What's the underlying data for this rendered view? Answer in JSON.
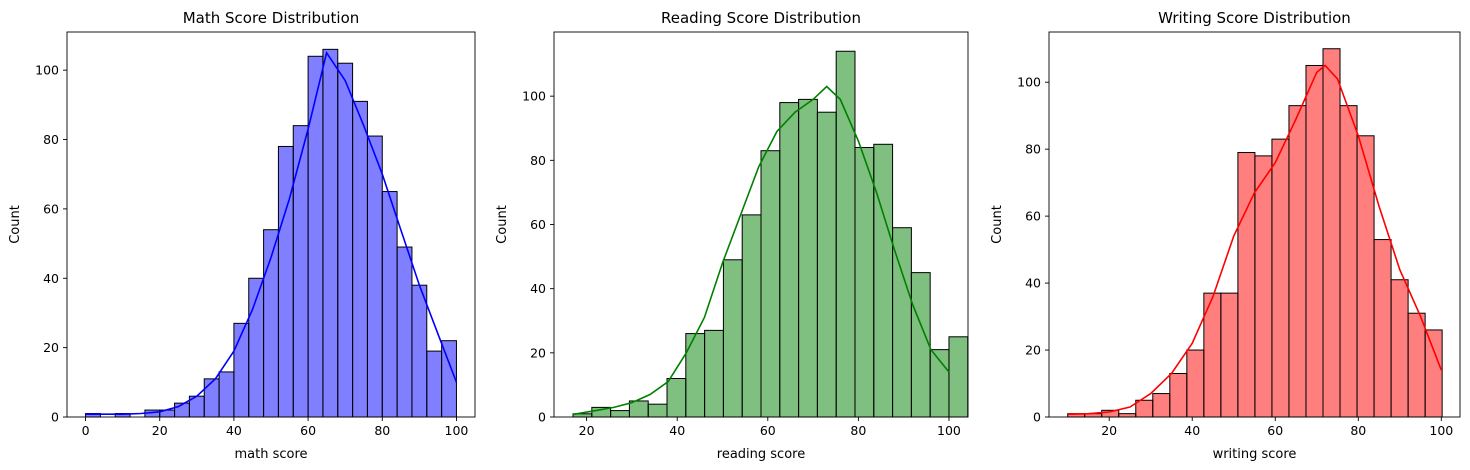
{
  "figure": {
    "background": "#ffffff"
  },
  "chart_data": [
    {
      "type": "bar",
      "title": "Math Score Distribution",
      "xlabel": "math score",
      "ylabel": "Count",
      "color": "#0000ff",
      "xlim": [
        -5,
        105
      ],
      "ylim": [
        0,
        111
      ],
      "xticks": [
        0,
        20,
        40,
        60,
        80,
        100
      ],
      "yticks": [
        0,
        20,
        40,
        60,
        80,
        100
      ],
      "bin_start": 0,
      "bin_width": 4,
      "values": [
        1,
        0,
        1,
        0,
        2,
        2,
        4,
        6,
        11,
        13,
        27,
        40,
        54,
        78,
        84,
        104,
        106,
        102,
        91,
        81,
        65,
        49,
        38,
        19,
        22
      ],
      "kde": [
        [
          0,
          0.8
        ],
        [
          5,
          0.8
        ],
        [
          10,
          0.8
        ],
        [
          15,
          1
        ],
        [
          20,
          1.5
        ],
        [
          25,
          3
        ],
        [
          30,
          6
        ],
        [
          35,
          11
        ],
        [
          40,
          19
        ],
        [
          45,
          31
        ],
        [
          50,
          46
        ],
        [
          55,
          63
        ],
        [
          60,
          83
        ],
        [
          65,
          105
        ],
        [
          70,
          97
        ],
        [
          75,
          84
        ],
        [
          80,
          70
        ],
        [
          85,
          54
        ],
        [
          90,
          38
        ],
        [
          95,
          24
        ],
        [
          100,
          10
        ]
      ]
    },
    {
      "type": "bar",
      "title": "Reading Score Distribution",
      "xlabel": "reading score",
      "ylabel": "Count",
      "color": "#008000",
      "xlim": [
        12.8,
        104.2
      ],
      "ylim": [
        0,
        120
      ],
      "xticks": [
        20,
        40,
        60,
        80,
        100
      ],
      "yticks": [
        0,
        20,
        40,
        60,
        80,
        100
      ],
      "bin_start": 17,
      "bin_width": 4.15,
      "values": [
        1,
        3,
        2,
        5,
        4,
        12,
        26,
        27,
        49,
        63,
        83,
        98,
        99,
        95,
        114,
        84,
        85,
        59,
        45,
        21,
        25
      ],
      "kde": [
        [
          17,
          0.8
        ],
        [
          22,
          2
        ],
        [
          26,
          3
        ],
        [
          30,
          4.5
        ],
        [
          34,
          7
        ],
        [
          38,
          11
        ],
        [
          42,
          20
        ],
        [
          46,
          31
        ],
        [
          50,
          48
        ],
        [
          54,
          63
        ],
        [
          58,
          78
        ],
        [
          62,
          89
        ],
        [
          66,
          95
        ],
        [
          70,
          99
        ],
        [
          73,
          103
        ],
        [
          76,
          99
        ],
        [
          80,
          86
        ],
        [
          84,
          70
        ],
        [
          88,
          52
        ],
        [
          92,
          35
        ],
        [
          96,
          21
        ],
        [
          100,
          14
        ]
      ]
    },
    {
      "type": "bar",
      "title": "Writing Score Distribution",
      "xlabel": "writing score",
      "ylabel": "Count",
      "color": "#ff0000",
      "xlim": [
        5.5,
        104.5
      ],
      "ylim": [
        0,
        115
      ],
      "xticks": [
        20,
        40,
        60,
        80,
        100
      ],
      "yticks": [
        0,
        20,
        40,
        60,
        80,
        100
      ],
      "bin_start": 10,
      "bin_width": 4.1,
      "values": [
        1,
        1,
        2,
        1,
        5,
        7,
        13,
        20,
        37,
        37,
        79,
        78,
        83,
        93,
        105,
        110,
        93,
        84,
        53,
        41,
        31,
        26
      ],
      "kde": [
        [
          10,
          0.8
        ],
        [
          15,
          1
        ],
        [
          20,
          1.5
        ],
        [
          25,
          3
        ],
        [
          30,
          7
        ],
        [
          35,
          13
        ],
        [
          40,
          22
        ],
        [
          45,
          36
        ],
        [
          50,
          54
        ],
        [
          55,
          67
        ],
        [
          60,
          76
        ],
        [
          65,
          89
        ],
        [
          70,
          103
        ],
        [
          72,
          105
        ],
        [
          75,
          101
        ],
        [
          80,
          84
        ],
        [
          85,
          63
        ],
        [
          90,
          44
        ],
        [
          95,
          30
        ],
        [
          100,
          14
        ]
      ]
    }
  ]
}
